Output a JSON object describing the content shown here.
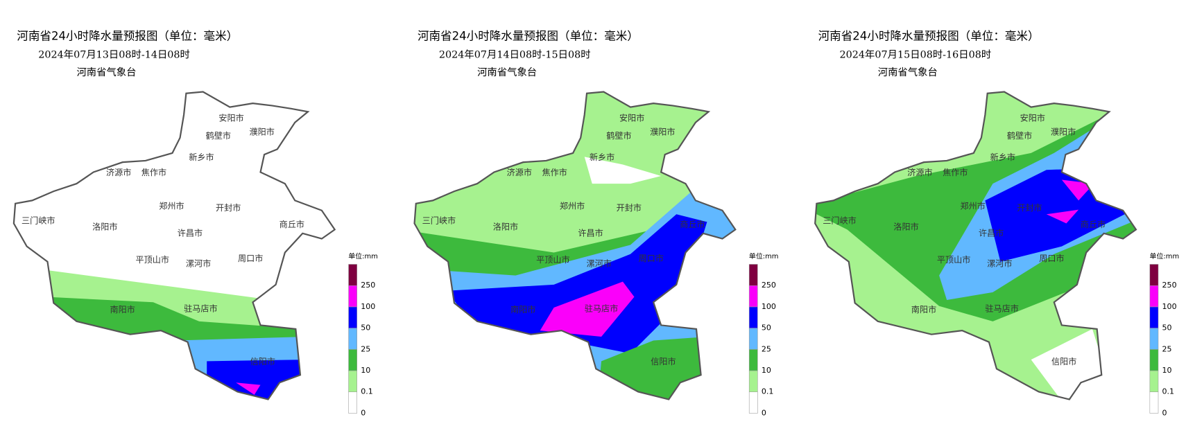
{
  "panels": [
    {
      "title": "河南省24小时降水量预报图（单位：毫米）",
      "subtitle": "2024年07月13日08时-14日08时",
      "issuer": "河南省气象台"
    },
    {
      "title": "河南省24小时降水量预报图（单位：毫米）",
      "subtitle": "2024年07月14日08时-15日08时",
      "issuer": "河南省气象台"
    },
    {
      "title": "河南省24小时降水量预报图（单位：毫米）",
      "subtitle": "2024年07月15日08时-16日08时",
      "issuer": "河南省气象台"
    }
  ],
  "cities": [
    "安阳市",
    "鹤壁市",
    "濮阳市",
    "新乡市",
    "济源市",
    "焦作市",
    "郑州市",
    "开封市",
    "三门峡市",
    "洛阳市",
    "商丘市",
    "许昌市",
    "平顶山市",
    "漯河市",
    "周口市",
    "南阳市",
    "驻马店市",
    "信阳市"
  ],
  "legend": {
    "unit": "单位:mm",
    "levels": [
      0,
      0.1,
      10,
      25,
      50,
      100,
      250
    ],
    "colors": [
      "#ffffff",
      "#a6f28f",
      "#3dba3d",
      "#61b8ff",
      "#0000fe",
      "#fa00fa",
      "#7f0040"
    ]
  }
}
